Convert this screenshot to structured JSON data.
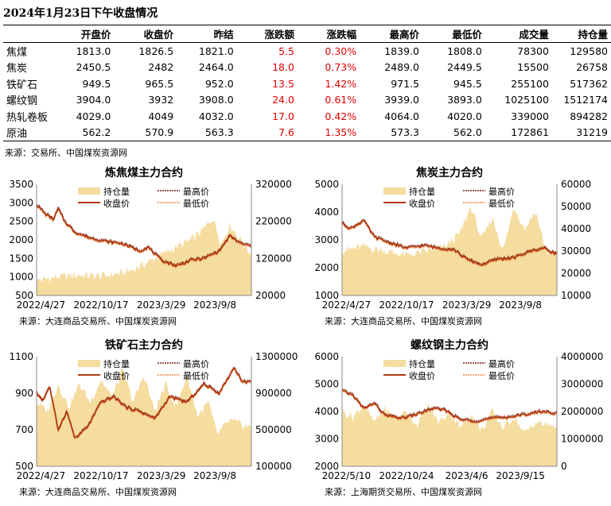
{
  "title": "2024年1月23日下午收盘情况",
  "table": {
    "headers": [
      "",
      "开盘价",
      "收盘价",
      "昨结",
      "涨跌额",
      "涨跌幅",
      "最高价",
      "最低价",
      "成交量",
      "持仓量"
    ],
    "rows": [
      [
        "焦煤",
        "1813.0",
        "1826.5",
        "1821.0",
        "5.5",
        "0.30%",
        "1839.0",
        "1808.0",
        "78300",
        "129580"
      ],
      [
        "焦炭",
        "2450.5",
        "2482",
        "2464.0",
        "18.0",
        "0.73%",
        "2489.0",
        "2449.5",
        "15500",
        "26758"
      ],
      [
        "铁矿石",
        "949.5",
        "965.5",
        "952.0",
        "13.5",
        "1.42%",
        "971.5",
        "945.5",
        "255100",
        "517362"
      ],
      [
        "螺纹钢",
        "3904.0",
        "3932",
        "3908.0",
        "24.0",
        "0.61%",
        "3939.0",
        "3893.0",
        "1025100",
        "1512174"
      ],
      [
        "热轧卷板",
        "4029.0",
        "4049",
        "4032.0",
        "17.0",
        "0.42%",
        "4064.0",
        "4020.0",
        "339000",
        "894282"
      ],
      [
        "原油",
        "562.2",
        "570.9",
        "563.3",
        "7.6",
        "1.35%",
        "573.3",
        "562.0",
        "172861",
        "31219"
      ]
    ],
    "source": "来源：交易所、中国煤炭资源网"
  },
  "colors": {
    "oi": "#f5dc9f",
    "close": "#b23a10",
    "high": "#7a1e10",
    "low": "#f08a4a",
    "up": "#e00000"
  },
  "chart_data": [
    {
      "type": "line",
      "title": "炼焦煤主力合约",
      "legend": [
        "持仓量",
        "最高价",
        "收盘价",
        "最低价"
      ],
      "x_ticks": [
        "2022/4/27",
        "2022/10/17",
        "2023/3/29",
        "2023/9/8"
      ],
      "y_left": [
        500,
        3500
      ],
      "y_left_ticks": [
        "3500",
        "3000",
        "2500",
        "2000",
        "1500",
        "1000",
        "500"
      ],
      "y_right": [
        20000,
        320000
      ],
      "y_right_ticks": [
        "320000",
        "220000",
        "120000",
        "20000"
      ],
      "close_keypoints": [
        [
          0,
          2950
        ],
        [
          0.04,
          2700
        ],
        [
          0.08,
          2550
        ],
        [
          0.1,
          2850
        ],
        [
          0.13,
          2500
        ],
        [
          0.18,
          2200
        ],
        [
          0.25,
          2050
        ],
        [
          0.33,
          1950
        ],
        [
          0.4,
          1900
        ],
        [
          0.48,
          1700
        ],
        [
          0.52,
          1800
        ],
        [
          0.58,
          1450
        ],
        [
          0.65,
          1300
        ],
        [
          0.72,
          1450
        ],
        [
          0.78,
          1500
        ],
        [
          0.85,
          1700
        ],
        [
          0.9,
          2100
        ],
        [
          0.95,
          1900
        ],
        [
          1,
          1830
        ]
      ],
      "oi_keypoints": [
        [
          0,
          60000
        ],
        [
          0.1,
          70000
        ],
        [
          0.2,
          75000
        ],
        [
          0.3,
          72000
        ],
        [
          0.4,
          80000
        ],
        [
          0.45,
          90000
        ],
        [
          0.52,
          110000
        ],
        [
          0.58,
          130000
        ],
        [
          0.65,
          150000
        ],
        [
          0.72,
          170000
        ],
        [
          0.78,
          200000
        ],
        [
          0.82,
          230000
        ],
        [
          0.86,
          160000
        ],
        [
          0.9,
          210000
        ],
        [
          0.95,
          170000
        ],
        [
          1,
          130000
        ]
      ],
      "source": "来源：大连商品交易所、中国煤炭资源网"
    },
    {
      "type": "line",
      "title": "焦炭主力合约",
      "legend": [
        "持仓量",
        "最高价",
        "收盘价",
        "最低价"
      ],
      "x_ticks": [
        "2022/4/27",
        "2022/10/17",
        "2023/3/29",
        "2023/9/8"
      ],
      "y_left": [
        1000,
        5000
      ],
      "y_left_ticks": [
        "5000",
        "4000",
        "3000",
        "2000",
        "1000"
      ],
      "y_right": [
        10000,
        60000
      ],
      "y_right_ticks": [
        "60000",
        "50000",
        "40000",
        "30000",
        "20000",
        "10000"
      ],
      "close_keypoints": [
        [
          0,
          3600
        ],
        [
          0.04,
          3400
        ],
        [
          0.1,
          3700
        ],
        [
          0.15,
          3100
        ],
        [
          0.22,
          2900
        ],
        [
          0.3,
          2700
        ],
        [
          0.38,
          2800
        ],
        [
          0.45,
          2700
        ],
        [
          0.52,
          2650
        ],
        [
          0.58,
          2300
        ],
        [
          0.65,
          2100
        ],
        [
          0.72,
          2300
        ],
        [
          0.8,
          2350
        ],
        [
          0.88,
          2600
        ],
        [
          0.94,
          2700
        ],
        [
          1,
          2480
        ]
      ],
      "oi_keypoints": [
        [
          0,
          30000
        ],
        [
          0.1,
          32000
        ],
        [
          0.2,
          30000
        ],
        [
          0.3,
          28000
        ],
        [
          0.4,
          30000
        ],
        [
          0.48,
          32000
        ],
        [
          0.55,
          38000
        ],
        [
          0.6,
          50000
        ],
        [
          0.65,
          35000
        ],
        [
          0.7,
          45000
        ],
        [
          0.75,
          30000
        ],
        [
          0.8,
          50000
        ],
        [
          0.85,
          40000
        ],
        [
          0.9,
          48000
        ],
        [
          0.95,
          30000
        ],
        [
          1,
          27000
        ]
      ],
      "source": "来源：大连商品交易所、中国煤炭资源网"
    },
    {
      "type": "line",
      "title": "铁矿石主力合约",
      "legend": [
        "持仓量",
        "最高价",
        "收盘价",
        "最低价"
      ],
      "x_ticks": [
        "2022/4/27",
        "2022/10/17",
        "2023/3/29",
        "2023/9/8"
      ],
      "y_left": [
        500,
        1100
      ],
      "y_left_ticks": [
        "1100",
        "900",
        "700",
        "500"
      ],
      "y_right": [
        100000,
        1300000
      ],
      "y_right_ticks": [
        "1300000",
        "900000",
        "500000",
        "100000"
      ],
      "close_keypoints": [
        [
          0,
          900
        ],
        [
          0.03,
          860
        ],
        [
          0.06,
          940
        ],
        [
          0.1,
          700
        ],
        [
          0.14,
          800
        ],
        [
          0.18,
          650
        ],
        [
          0.24,
          720
        ],
        [
          0.3,
          850
        ],
        [
          0.36,
          880
        ],
        [
          0.42,
          820
        ],
        [
          0.48,
          800
        ],
        [
          0.55,
          760
        ],
        [
          0.62,
          880
        ],
        [
          0.7,
          850
        ],
        [
          0.78,
          950
        ],
        [
          0.85,
          900
        ],
        [
          0.92,
          1040
        ],
        [
          0.96,
          960
        ],
        [
          1,
          965
        ]
      ],
      "oi_keypoints": [
        [
          0,
          800000
        ],
        [
          0.05,
          700000
        ],
        [
          0.1,
          1000000
        ],
        [
          0.15,
          750000
        ],
        [
          0.2,
          1000000
        ],
        [
          0.25,
          800000
        ],
        [
          0.3,
          1050000
        ],
        [
          0.35,
          850000
        ],
        [
          0.4,
          1150000
        ],
        [
          0.45,
          800000
        ],
        [
          0.5,
          1100000
        ],
        [
          0.55,
          700000
        ],
        [
          0.6,
          1000000
        ],
        [
          0.65,
          750000
        ],
        [
          0.7,
          1100000
        ],
        [
          0.75,
          650000
        ],
        [
          0.8,
          800000
        ],
        [
          0.84,
          450000
        ],
        [
          0.9,
          600000
        ],
        [
          1,
          520000
        ]
      ],
      "source": "来源：大连商品交易所、中国煤炭资源网"
    },
    {
      "type": "line",
      "title": "螺纹钢主力合约",
      "legend": [
        "持仓量",
        "最高价",
        "收盘价",
        "最低价"
      ],
      "x_ticks": [
        "2022/5/10",
        "2022/10/24",
        "2023/4/6",
        "2023/9/15"
      ],
      "y_left": [
        2000,
        6000
      ],
      "y_left_ticks": [
        "6000",
        "5000",
        "4000",
        "3000",
        "2000"
      ],
      "y_right": [
        0,
        4000000
      ],
      "y_right_ticks": [
        "4000000",
        "3000000",
        "2000000",
        "1000000",
        "0"
      ],
      "close_keypoints": [
        [
          0,
          4750
        ],
        [
          0.05,
          4600
        ],
        [
          0.1,
          4100
        ],
        [
          0.15,
          4300
        ],
        [
          0.2,
          3850
        ],
        [
          0.28,
          3750
        ],
        [
          0.35,
          3900
        ],
        [
          0.42,
          4100
        ],
        [
          0.48,
          4050
        ],
        [
          0.55,
          3700
        ],
        [
          0.62,
          3650
        ],
        [
          0.7,
          3750
        ],
        [
          0.78,
          3800
        ],
        [
          0.86,
          3900
        ],
        [
          0.93,
          4000
        ],
        [
          1,
          3930
        ]
      ],
      "oi_keypoints": [
        [
          0,
          2000000
        ],
        [
          0.05,
          1800000
        ],
        [
          0.1,
          2200000
        ],
        [
          0.15,
          1600000
        ],
        [
          0.2,
          2100000
        ],
        [
          0.25,
          1700000
        ],
        [
          0.3,
          2000000
        ],
        [
          0.35,
          1500000
        ],
        [
          0.4,
          2200000
        ],
        [
          0.45,
          1600000
        ],
        [
          0.5,
          2000000
        ],
        [
          0.55,
          1400000
        ],
        [
          0.6,
          1900000
        ],
        [
          0.65,
          1300000
        ],
        [
          0.7,
          2000000
        ],
        [
          0.75,
          1400000
        ],
        [
          0.8,
          1800000
        ],
        [
          0.85,
          1200000
        ],
        [
          0.9,
          1600000
        ],
        [
          0.95,
          1500000
        ],
        [
          1,
          1500000
        ]
      ],
      "source": "来源：上海期货交易所、中国煤炭资源网"
    }
  ]
}
